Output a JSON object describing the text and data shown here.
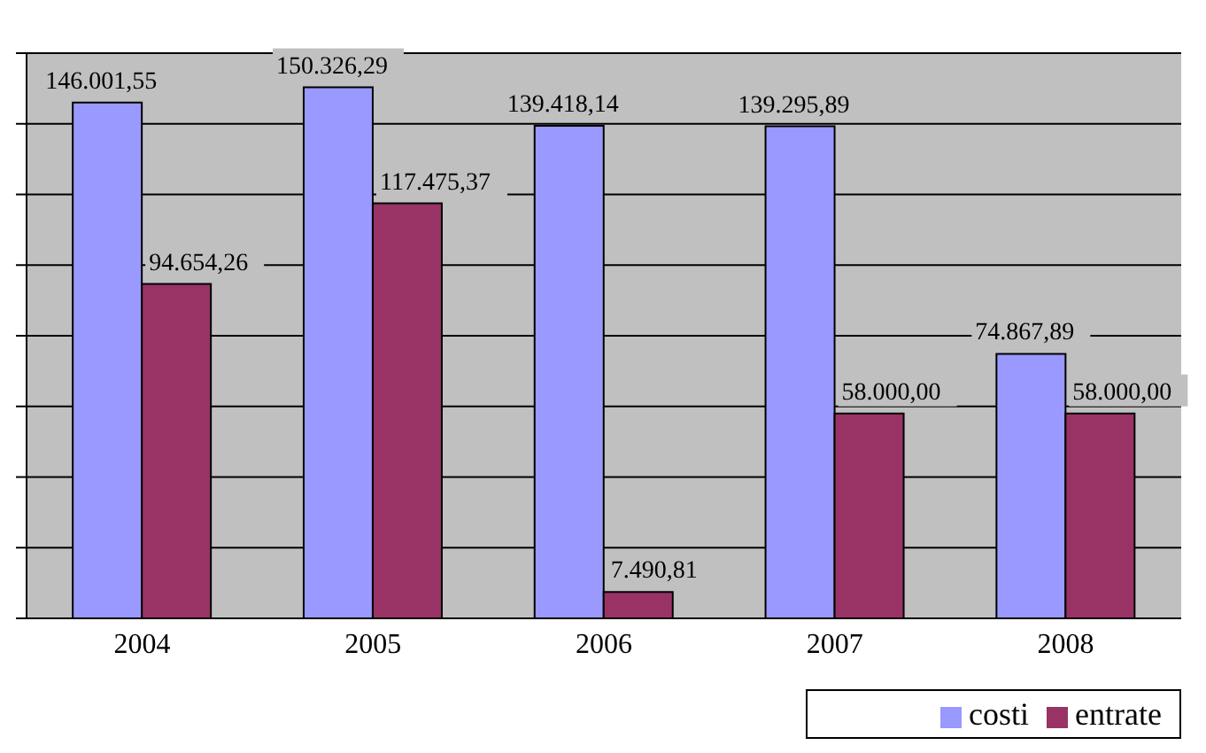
{
  "chart_data": {
    "type": "bar",
    "categories": [
      "2004",
      "2005",
      "2006",
      "2007",
      "2008"
    ],
    "series": [
      {
        "name": "costi",
        "color": "#9999ff",
        "values": [
          146001.55,
          150326.29,
          139418.14,
          139295.89,
          74867.89
        ],
        "value_labels": [
          "146.001,55",
          "150.326,29",
          "139.418,14",
          "139.295,89",
          "74.867,89"
        ]
      },
      {
        "name": "entrate",
        "color": "#993366",
        "values": [
          94654.26,
          117475.37,
          7490.81,
          58000,
          58000
        ],
        "value_labels": [
          "94.654,26",
          "117.475,37",
          "7.490,81",
          "58.000,00",
          "58.000,00"
        ]
      }
    ],
    "ylim": [
      0,
      160000
    ],
    "yticks": [
      {
        "value": 0,
        "label": null
      },
      {
        "value": 20000,
        "label": null
      },
      {
        "value": 40000,
        "label": null
      },
      {
        "value": 60000,
        "label": null
      },
      {
        "value": 80000,
        "label": null
      },
      {
        "value": 100000,
        "label": null
      },
      {
        "value": 120000,
        "label": null
      },
      {
        "value": 140000,
        "label": null
      },
      {
        "value": 160000,
        "label": null
      }
    ],
    "tick_labels": "x",
    "grid": "y",
    "legend": "bottom right"
  }
}
